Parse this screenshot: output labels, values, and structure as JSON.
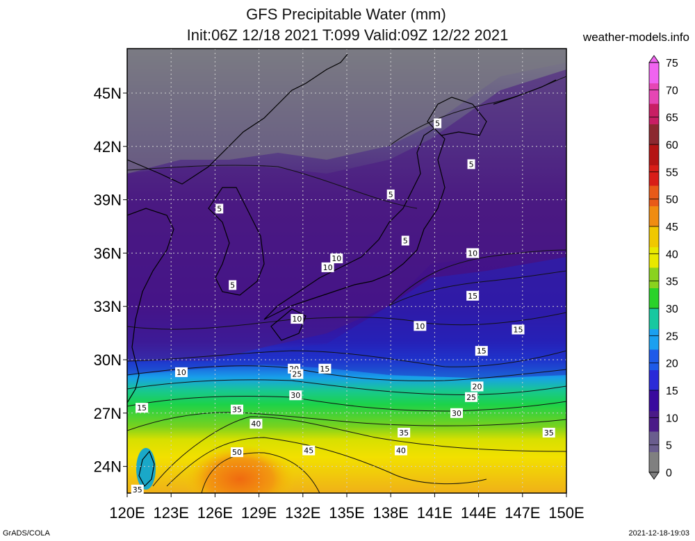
{
  "title_line1": "GFS Precipitable Water (mm)",
  "title_line2": "Init:06Z 12/18 2021 T:099 Valid:09Z 12/22 2021",
  "site": "weather-models.info",
  "footer_left": "GrADS/COLA",
  "footer_right": "2021-12-18-19:03",
  "lat_ticks": [
    "45N",
    "42N",
    "39N",
    "36N",
    "33N",
    "30N",
    "27N",
    "24N"
  ],
  "lon_ticks": [
    "120E",
    "123E",
    "126E",
    "129E",
    "132E",
    "135E",
    "138E",
    "141E",
    "144E",
    "147E",
    "150E"
  ],
  "colorbar": {
    "labels": [
      "0",
      "5",
      "10",
      "15",
      "20",
      "25",
      "30",
      "35",
      "40",
      "45",
      "50",
      "55",
      "60",
      "65",
      "70",
      "75"
    ],
    "colors": [
      "#808080",
      "#6a5d8e",
      "#4b1a88",
      "#3a0a9e",
      "#2a2ad8",
      "#1e5ae8",
      "#1aa0f0",
      "#18c8a0",
      "#2ad22a",
      "#8ad21e",
      "#e8e800",
      "#f0c800",
      "#f08c10",
      "#e85a18",
      "#d81e18",
      "#b41414",
      "#8c2830",
      "#c81e64",
      "#e646b4",
      "#f064f0"
    ]
  },
  "contour_labels": [
    {
      "text": "5",
      "kind": "lat_lon",
      "lat": 43.3,
      "lon": 141.2
    },
    {
      "text": "5",
      "kind": "lat_lon",
      "lat": 41.0,
      "lon": 143.5
    },
    {
      "text": "5",
      "kind": "lat_lon",
      "lat": 39.3,
      "lon": 138.0
    },
    {
      "text": "5",
      "kind": "lat_lon",
      "lat": 38.5,
      "lon": 126.3
    },
    {
      "text": "5",
      "kind": "lat_lon",
      "lat": 36.7,
      "lon": 139.0
    },
    {
      "text": "5",
      "kind": "lat_lon",
      "lat": 34.2,
      "lon": 127.2
    },
    {
      "text": "10",
      "kind": "lat_lon",
      "lat": 36.0,
      "lon": 143.6
    },
    {
      "text": "10",
      "kind": "lat_lon",
      "lat": 35.7,
      "lon": 134.3
    },
    {
      "text": "10",
      "kind": "lat_lon",
      "lat": 35.2,
      "lon": 133.7
    },
    {
      "text": "10",
      "kind": "lat_lon",
      "lat": 32.3,
      "lon": 131.6
    },
    {
      "text": "10",
      "kind": "lat_lon",
      "lat": 31.9,
      "lon": 140.0
    },
    {
      "text": "10",
      "kind": "lat_lon",
      "lat": 29.3,
      "lon": 123.7
    },
    {
      "text": "15",
      "kind": "lat_lon",
      "lat": 33.6,
      "lon": 143.6
    },
    {
      "text": "15",
      "kind": "lat_lon",
      "lat": 31.7,
      "lon": 146.7
    },
    {
      "text": "15",
      "kind": "lat_lon",
      "lat": 30.5,
      "lon": 144.2
    },
    {
      "text": "15",
      "kind": "lat_lon",
      "lat": 29.5,
      "lon": 133.5
    },
    {
      "text": "15",
      "kind": "lat_lon",
      "lat": 27.3,
      "lon": 121.0
    },
    {
      "text": "20",
      "kind": "lat_lon",
      "lat": 29.5,
      "lon": 131.4
    },
    {
      "text": "20",
      "kind": "lat_lon",
      "lat": 28.5,
      "lon": 143.9
    },
    {
      "text": "25",
      "kind": "lat_lon",
      "lat": 29.2,
      "lon": 131.6
    },
    {
      "text": "25",
      "kind": "lat_lon",
      "lat": 27.9,
      "lon": 143.5
    },
    {
      "text": "30",
      "kind": "lat_lon",
      "lat": 28.0,
      "lon": 131.5
    },
    {
      "text": "30",
      "kind": "lat_lon",
      "lat": 27.0,
      "lon": 142.5
    },
    {
      "text": "35",
      "kind": "lat_lon",
      "lat": 27.2,
      "lon": 127.5
    },
    {
      "text": "35",
      "kind": "lat_lon",
      "lat": 25.9,
      "lon": 138.9
    },
    {
      "text": "35",
      "kind": "lat_lon",
      "lat": 25.9,
      "lon": 148.8
    },
    {
      "text": "40",
      "kind": "lat_lon",
      "lat": 26.4,
      "lon": 128.8
    },
    {
      "text": "40",
      "kind": "lat_lon",
      "lat": 24.9,
      "lon": 138.7
    },
    {
      "text": "45",
      "kind": "lat_lon",
      "lat": 24.9,
      "lon": 132.4
    },
    {
      "text": "50",
      "kind": "lat_lon",
      "lat": 24.8,
      "lon": 127.5
    },
    {
      "text": "35",
      "kind": "lat_lon",
      "lat": 22.7,
      "lon": 120.7
    }
  ]
}
